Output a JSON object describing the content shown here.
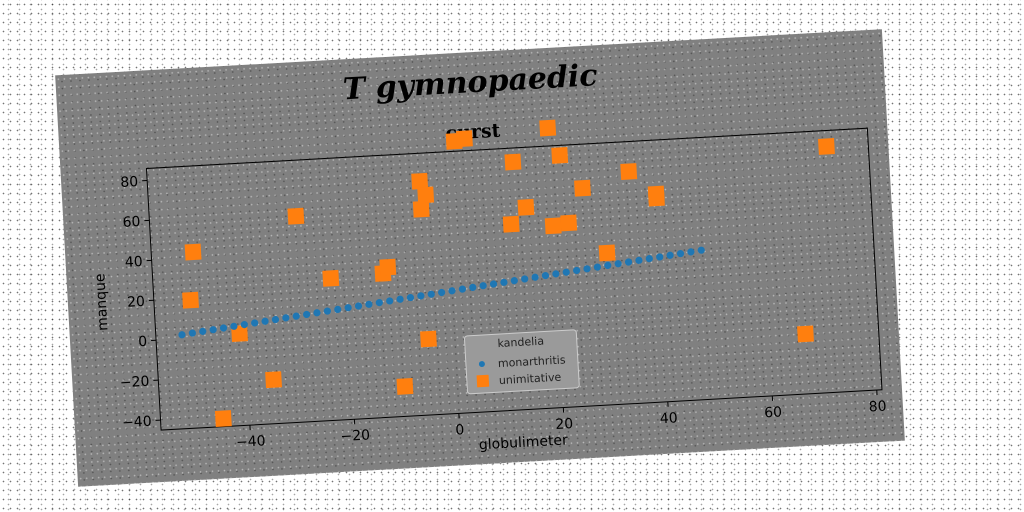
{
  "chart_data": {
    "type": "scatter",
    "suptitle": "T gymnopaedic",
    "title": "curst",
    "xlabel": "globulimeter",
    "ylabel": "manque",
    "xlim": [
      -57,
      81
    ],
    "ylim": [
      -45,
      86
    ],
    "xticks": [
      -40,
      -20,
      0,
      20,
      40,
      60,
      80
    ],
    "yticks": [
      -40,
      -20,
      0,
      20,
      40,
      60,
      80
    ],
    "grid": false,
    "legend": {
      "title": "kandelia",
      "position": "lower-center"
    },
    "series": [
      {
        "name": "monarthritis",
        "marker": "circle",
        "color": "#1f77b4",
        "x_start": -52,
        "x_end": 49,
        "x_step": 2,
        "y_start": 2,
        "y_end": 30
      },
      {
        "name": "unimitative",
        "marker": "square",
        "color": "#ff7f0e",
        "points": [
          [
            -50,
            19
          ],
          [
            -49,
            43
          ],
          [
            -45,
            -41
          ],
          [
            -41,
            1
          ],
          [
            -35,
            -23
          ],
          [
            -29,
            58
          ],
          [
            -23,
            26
          ],
          [
            -13,
            27
          ],
          [
            -12,
            30
          ],
          [
            -10,
            -30
          ],
          [
            -5,
            -7
          ],
          [
            -5,
            58
          ],
          [
            -5,
            72
          ],
          [
            -4,
            65
          ],
          [
            2,
            91
          ],
          [
            4,
            92
          ],
          [
            12,
            48
          ],
          [
            13,
            79
          ],
          [
            15,
            56
          ],
          [
            20,
            95
          ],
          [
            20,
            46
          ],
          [
            22,
            81
          ],
          [
            23,
            47
          ],
          [
            26,
            64
          ],
          [
            30,
            31
          ],
          [
            35,
            71
          ],
          [
            40,
            57
          ],
          [
            40,
            59
          ],
          [
            67,
            -15
          ],
          [
            73,
            78
          ]
        ]
      }
    ]
  }
}
